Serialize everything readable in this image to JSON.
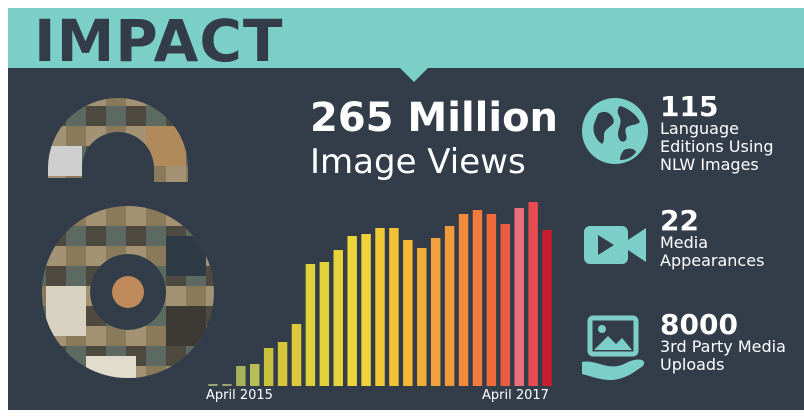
{
  "title": "IMPACT",
  "headline": {
    "number": "265 Million",
    "label": "Image Views"
  },
  "chart_data": {
    "type": "bar",
    "categories": [
      "April 2015",
      "",
      "",
      "",
      "",
      "",
      "",
      "",
      "",
      "",
      "",
      "",
      "",
      "",
      "",
      "",
      "",
      "",
      "",
      "",
      "",
      "",
      "",
      "",
      "April 2017"
    ],
    "values": [
      1,
      1,
      10,
      11,
      19,
      22,
      31,
      61,
      62,
      68,
      75,
      76,
      79,
      79,
      73,
      69,
      74,
      80,
      86,
      88,
      86,
      81,
      89,
      92,
      78
    ],
    "x_tick_labels": [
      "April 2015",
      "April 2017"
    ],
    "colors": [
      "#9aa46e",
      "#9aa46e",
      "#a8b25a",
      "#b8bd57",
      "#c9c23f",
      "#d6c43a",
      "#dcc838",
      "#ded23a",
      "#e4d23a",
      "#e8d43a",
      "#ecd538",
      "#f0d33a",
      "#f2c936",
      "#f4c134",
      "#f6b832",
      "#f2ad36",
      "#f2a23c",
      "#f39a3a",
      "#f28a3c",
      "#f27a3a",
      "#f06a3c",
      "#ea5a44",
      "#e8707a",
      "#e84c50",
      "#c61e2e"
    ]
  },
  "stats": [
    {
      "icon": "globe-icon",
      "number": "115",
      "label": "Language Editions Using NLW Images"
    },
    {
      "icon": "video-camera-icon",
      "number": "22",
      "label": "Media Appearances"
    },
    {
      "icon": "image-upload-hand-icon",
      "number": "8000",
      "label": "3rd Party Media Uploads"
    }
  ],
  "theme": {
    "background": "#333d4a",
    "accent": "#7ccfc8",
    "text": "#ffffff",
    "lock_icon": "open-access-lock-icon"
  }
}
